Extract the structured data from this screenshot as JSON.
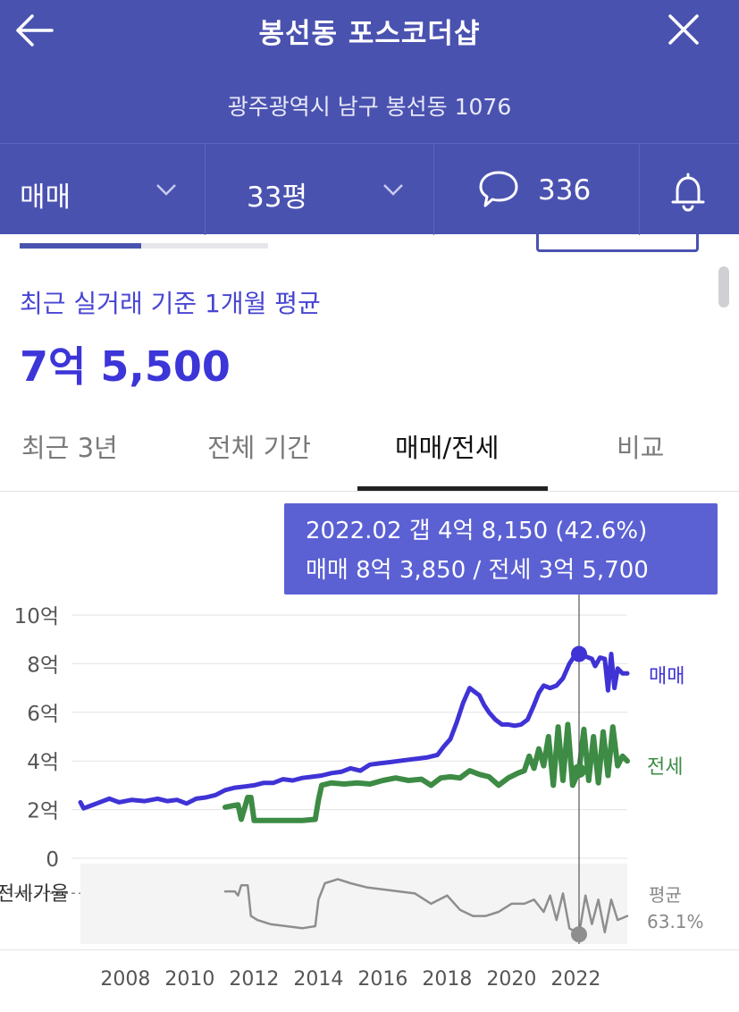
{
  "header": {
    "title": "봉선동 포스코더샵",
    "address": "광주광역시 남구 봉선동 1076",
    "trade_type": "매매",
    "size": "33평",
    "comment_count": "336"
  },
  "summary": {
    "label": "최근 실거래 기준 1개월 평균",
    "price": "7억 5,500"
  },
  "tabs": [
    {
      "label": "최근 3년",
      "active": false
    },
    {
      "label": "전체 기간",
      "active": false
    },
    {
      "label": "매매/전세",
      "active": true
    },
    {
      "label": "비교",
      "active": false
    }
  ],
  "tooltip": {
    "line1": "2022.02  갭 4억 8,150 (42.6%)",
    "line2": "매매 8억 3,850 / 전세 3억 5,700"
  },
  "colors": {
    "header": "#4a52b0",
    "sale": "#3f33d6",
    "jeonse": "#3d8b45",
    "ratio": "#8e8e8e",
    "tooltip": "#5b61d3"
  },
  "chart_data": {
    "type": "line",
    "yticks": [
      "10억",
      "8억",
      "6억",
      "4억",
      "2억",
      "0"
    ],
    "ytick_values": [
      10,
      8,
      6,
      4,
      2,
      0
    ],
    "ylim": [
      0,
      10
    ],
    "xlim": [
      2006.6,
      2023.6
    ],
    "xticks": [
      "2008",
      "2010",
      "2012",
      "2014",
      "2016",
      "2018",
      "2020",
      "2022"
    ],
    "xtick_values": [
      2008,
      2010,
      2012,
      2014,
      2016,
      2018,
      2020,
      2022
    ],
    "highlight_x": 2022.1,
    "series": [
      {
        "name": "매매",
        "color": "#3f33d6",
        "points": [
          [
            2006.6,
            2.3
          ],
          [
            2006.7,
            2.05
          ],
          [
            2006.9,
            2.15
          ],
          [
            2007.2,
            2.3
          ],
          [
            2007.5,
            2.45
          ],
          [
            2007.8,
            2.3
          ],
          [
            2008.2,
            2.4
          ],
          [
            2008.6,
            2.35
          ],
          [
            2009.0,
            2.45
          ],
          [
            2009.3,
            2.35
          ],
          [
            2009.6,
            2.4
          ],
          [
            2009.9,
            2.25
          ],
          [
            2010.2,
            2.45
          ],
          [
            2010.5,
            2.5
          ],
          [
            2010.8,
            2.6
          ],
          [
            2011.1,
            2.8
          ],
          [
            2011.4,
            2.9
          ],
          [
            2011.7,
            2.95
          ],
          [
            2012.0,
            3.0
          ],
          [
            2012.3,
            3.1
          ],
          [
            2012.6,
            3.1
          ],
          [
            2012.9,
            3.25
          ],
          [
            2013.2,
            3.2
          ],
          [
            2013.5,
            3.3
          ],
          [
            2013.8,
            3.35
          ],
          [
            2014.1,
            3.4
          ],
          [
            2014.4,
            3.5
          ],
          [
            2014.7,
            3.55
          ],
          [
            2015.0,
            3.7
          ],
          [
            2015.3,
            3.6
          ],
          [
            2015.6,
            3.85
          ],
          [
            2015.9,
            3.9
          ],
          [
            2016.2,
            3.95
          ],
          [
            2016.5,
            4.0
          ],
          [
            2016.8,
            4.05
          ],
          [
            2017.1,
            4.1
          ],
          [
            2017.4,
            4.15
          ],
          [
            2017.7,
            4.25
          ],
          [
            2017.9,
            4.6
          ],
          [
            2018.1,
            4.9
          ],
          [
            2018.3,
            5.6
          ],
          [
            2018.5,
            6.4
          ],
          [
            2018.7,
            7.0
          ],
          [
            2018.85,
            6.85
          ],
          [
            2019.0,
            6.7
          ],
          [
            2019.15,
            6.3
          ],
          [
            2019.3,
            6.0
          ],
          [
            2019.5,
            5.7
          ],
          [
            2019.7,
            5.5
          ],
          [
            2019.9,
            5.5
          ],
          [
            2020.1,
            5.45
          ],
          [
            2020.3,
            5.5
          ],
          [
            2020.5,
            5.7
          ],
          [
            2020.7,
            6.3
          ],
          [
            2020.85,
            6.8
          ],
          [
            2021.0,
            7.1
          ],
          [
            2021.2,
            7.0
          ],
          [
            2021.4,
            7.1
          ],
          [
            2021.6,
            7.4
          ],
          [
            2021.8,
            8.0
          ],
          [
            2022.0,
            8.4
          ],
          [
            2022.1,
            8.4
          ],
          [
            2022.3,
            8.3
          ],
          [
            2022.5,
            8.2
          ],
          [
            2022.6,
            7.9
          ],
          [
            2022.75,
            8.25
          ],
          [
            2022.9,
            8.2
          ],
          [
            2023.0,
            6.9
          ],
          [
            2023.1,
            8.4
          ],
          [
            2023.2,
            7.0
          ],
          [
            2023.3,
            7.8
          ],
          [
            2023.45,
            7.6
          ],
          [
            2023.6,
            7.6
          ]
        ]
      },
      {
        "name": "전세",
        "color": "#3d8b45",
        "points": [
          [
            2011.1,
            2.1
          ],
          [
            2011.3,
            2.15
          ],
          [
            2011.5,
            2.2
          ],
          [
            2011.6,
            1.6
          ],
          [
            2011.8,
            2.5
          ],
          [
            2011.9,
            2.5
          ],
          [
            2012.0,
            1.55
          ],
          [
            2012.5,
            1.55
          ],
          [
            2013.0,
            1.55
          ],
          [
            2013.5,
            1.55
          ],
          [
            2013.9,
            1.6
          ],
          [
            2014.0,
            2.4
          ],
          [
            2014.1,
            3.0
          ],
          [
            2014.4,
            3.1
          ],
          [
            2014.8,
            3.05
          ],
          [
            2015.2,
            3.1
          ],
          [
            2015.6,
            3.05
          ],
          [
            2016.0,
            3.2
          ],
          [
            2016.4,
            3.3
          ],
          [
            2016.8,
            3.2
          ],
          [
            2017.2,
            3.25
          ],
          [
            2017.5,
            3.0
          ],
          [
            2017.8,
            3.3
          ],
          [
            2018.1,
            3.35
          ],
          [
            2018.4,
            3.3
          ],
          [
            2018.7,
            3.6
          ],
          [
            2019.0,
            3.45
          ],
          [
            2019.3,
            3.35
          ],
          [
            2019.6,
            3.0
          ],
          [
            2019.9,
            3.3
          ],
          [
            2020.2,
            3.5
          ],
          [
            2020.4,
            3.6
          ],
          [
            2020.55,
            4.2
          ],
          [
            2020.7,
            3.7
          ],
          [
            2020.85,
            4.5
          ],
          [
            2021.0,
            3.8
          ],
          [
            2021.15,
            5.0
          ],
          [
            2021.3,
            3.0
          ],
          [
            2021.45,
            5.4
          ],
          [
            2021.6,
            3.2
          ],
          [
            2021.75,
            5.5
          ],
          [
            2021.9,
            3.0
          ],
          [
            2022.1,
            3.6
          ],
          [
            2022.25,
            5.3
          ],
          [
            2022.4,
            3.2
          ],
          [
            2022.55,
            5.0
          ],
          [
            2022.7,
            3.1
          ],
          [
            2022.85,
            5.2
          ],
          [
            2023.0,
            3.4
          ],
          [
            2023.15,
            5.4
          ],
          [
            2023.3,
            3.8
          ],
          [
            2023.45,
            4.2
          ],
          [
            2023.6,
            4.0
          ]
        ]
      },
      {
        "name": "전세가율",
        "color": "#8e8e8e",
        "points": [
          [
            2011.1,
            64
          ],
          [
            2011.4,
            64
          ],
          [
            2011.5,
            62
          ],
          [
            2011.6,
            67
          ],
          [
            2011.8,
            67
          ],
          [
            2011.9,
            52
          ],
          [
            2012.1,
            50
          ],
          [
            2012.5,
            48
          ],
          [
            2013.0,
            47
          ],
          [
            2013.5,
            46
          ],
          [
            2013.9,
            47
          ],
          [
            2014.0,
            60
          ],
          [
            2014.2,
            68
          ],
          [
            2014.6,
            70
          ],
          [
            2015.0,
            68
          ],
          [
            2015.5,
            66
          ],
          [
            2016.0,
            65
          ],
          [
            2016.5,
            64
          ],
          [
            2017.0,
            63
          ],
          [
            2017.5,
            58
          ],
          [
            2018.0,
            62
          ],
          [
            2018.4,
            55
          ],
          [
            2018.8,
            52
          ],
          [
            2019.2,
            52
          ],
          [
            2019.6,
            54
          ],
          [
            2020.0,
            58
          ],
          [
            2020.4,
            58
          ],
          [
            2020.7,
            60
          ],
          [
            2021.0,
            54
          ],
          [
            2021.2,
            62
          ],
          [
            2021.4,
            50
          ],
          [
            2021.6,
            63
          ],
          [
            2021.8,
            46
          ],
          [
            2022.0,
            44
          ],
          [
            2022.1,
            43
          ],
          [
            2022.3,
            62
          ],
          [
            2022.5,
            48
          ],
          [
            2022.7,
            60
          ],
          [
            2022.9,
            44
          ],
          [
            2023.1,
            60
          ],
          [
            2023.3,
            50
          ],
          [
            2023.6,
            52
          ]
        ]
      }
    ],
    "series_labels": {
      "sale": "매매",
      "jeonse": "전세",
      "ratio": "전세가율"
    },
    "ratio_avg_label": "평균",
    "ratio_avg_value": "63.1%",
    "ratio_avg": 63.1
  }
}
